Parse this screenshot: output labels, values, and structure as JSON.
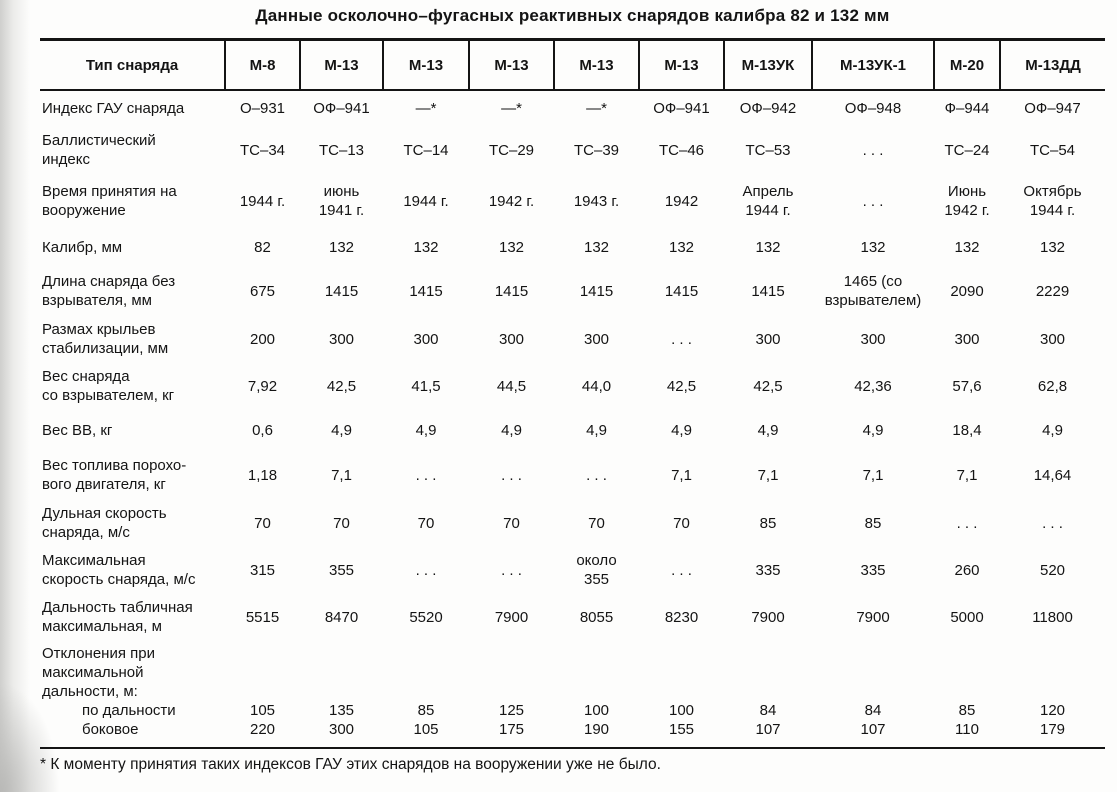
{
  "title": "Данные осколочно–фугасных реактивных снарядов калибра 82 и 132 мм",
  "footnote": "* К моменту принятия таких индексов ГАУ этих снарядов на вооружении уже не было.",
  "colors": {
    "ink": "#141414",
    "paper": "#fdfdfc"
  },
  "table": {
    "columns": [
      "Тип снаряда",
      "М-8",
      "М-13",
      "М-13",
      "М-13",
      "М-13",
      "М-13",
      "М-13УК",
      "М-13УК-1",
      "М-20",
      "М-13ДД"
    ],
    "rows": [
      {
        "label": "Индекс ГАУ снаряда",
        "values": [
          "О–931",
          "ОФ–941",
          "—*",
          "—*",
          "—*",
          "ОФ–941",
          "ОФ–942",
          "ОФ–948",
          "Ф–944",
          "ОФ–947"
        ]
      },
      {
        "label": "Баллистический\nиндекс",
        "values": [
          "ТС–34",
          "ТС–13",
          "ТС–14",
          "ТС–29",
          "ТС–39",
          "ТС–46",
          "ТС–53",
          ". . .",
          "ТС–24",
          "ТС–54"
        ]
      },
      {
        "label": "Время принятия на\nвооружение",
        "values": [
          "1944 г.",
          "июнь\n1941 г.",
          "1944 г.",
          "1942 г.",
          "1943 г.",
          "1942",
          "Апрель\n1944 г.",
          ". . .",
          "Июнь\n1942 г.",
          "Октябрь\n1944 г."
        ]
      },
      {
        "label": "Калибр, мм",
        "values": [
          "82",
          "132",
          "132",
          "132",
          "132",
          "132",
          "132",
          "132",
          "132",
          "132"
        ]
      },
      {
        "label": "Длина снаряда без\nвзрывателя, мм",
        "values": [
          "675",
          "1415",
          "1415",
          "1415",
          "1415",
          "1415",
          "1415",
          "1465 (со\nвзрывателем)",
          "2090",
          "2229"
        ]
      },
      {
        "label": "Размах крыльев\nстабилизации, мм",
        "values": [
          "200",
          "300",
          "300",
          "300",
          "300",
          ". . .",
          "300",
          "300",
          "300",
          "300"
        ]
      },
      {
        "label": "Вес снаряда\nсо взрывателем, кг",
        "values": [
          "7,92",
          "42,5",
          "41,5",
          "44,5",
          "44,0",
          "42,5",
          "42,5",
          "42,36",
          "57,6",
          "62,8"
        ]
      },
      {
        "label": "Вес ВВ, кг",
        "values": [
          "0,6",
          "4,9",
          "4,9",
          "4,9",
          "4,9",
          "4,9",
          "4,9",
          "4,9",
          "18,4",
          "4,9"
        ]
      },
      {
        "label": "Вес топлива порохо-\nвого двигателя, кг",
        "values": [
          "1,18",
          "7,1",
          ". . .",
          ". . .",
          ". . .",
          "7,1",
          "7,1",
          "7,1",
          "7,1",
          "14,64"
        ]
      },
      {
        "label": "Дульная скорость\nснаряда, м/с",
        "values": [
          "70",
          "70",
          "70",
          "70",
          "70",
          "70",
          "85",
          "85",
          ". . .",
          ". . ."
        ]
      },
      {
        "label": "Максимальная\nскорость снаряда, м/с",
        "values": [
          "315",
          "355",
          ". . .",
          ". . .",
          "около\n355",
          ". . .",
          "335",
          "335",
          "260",
          "520"
        ]
      },
      {
        "label": "Дальность табличная\nмаксимальная, м",
        "values": [
          "5515",
          "8470",
          "5520",
          "7900",
          "8055",
          "8230",
          "7900",
          "7900",
          "5000",
          "11800"
        ]
      },
      {
        "label": "Отклонения при\nмаксимальной\nдальности, м:",
        "sub_rows": [
          {
            "label": "по дальности",
            "values": [
              "105",
              "135",
              "85",
              "125",
              "100",
              "100",
              "84",
              "84",
              "85",
              "120"
            ]
          },
          {
            "label": "боковое",
            "values": [
              "220",
              "300",
              "105",
              "175",
              "190",
              "155",
              "107",
              "107",
              "110",
              "179"
            ]
          }
        ]
      }
    ]
  }
}
